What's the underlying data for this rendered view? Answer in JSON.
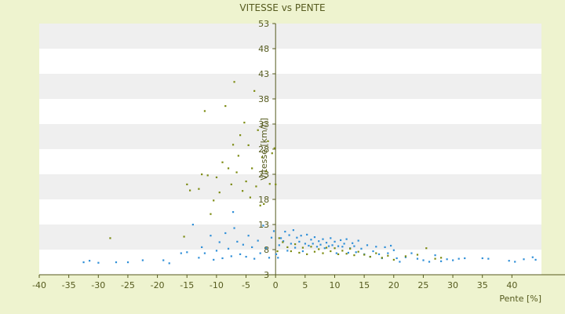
{
  "chart_data": {
    "type": "scatter",
    "title": "VITESSE vs PENTE",
    "xlabel": "Pente [%]",
    "ylabel": "Vitesse [km/h]",
    "xlim": [
      -40,
      45
    ],
    "ylim": [
      3,
      53
    ],
    "x_ticks": [
      -40,
      -35,
      -30,
      -25,
      -20,
      -15,
      -10,
      -5,
      0,
      5,
      10,
      15,
      20,
      25,
      30,
      35,
      40
    ],
    "y_ticks": [
      3,
      8,
      13,
      18,
      23,
      28,
      33,
      38,
      43,
      48,
      53
    ],
    "grid": "alternating horizontal bands",
    "legend": "none",
    "colors": {
      "plot_bg": "#ffffff",
      "band": "#efefef",
      "page_bg": "#eef3cf",
      "axis": "#555a1e"
    },
    "series": [
      {
        "color": "#2f8fd8",
        "points": [
          [
            -32.5,
            5.5
          ],
          [
            -31.5,
            5.8
          ],
          [
            -30,
            5.4
          ],
          [
            -27,
            5.5
          ],
          [
            -25,
            5.5
          ],
          [
            -22.5,
            5.9
          ],
          [
            -19,
            5.9
          ],
          [
            -18,
            5.3
          ],
          [
            -16,
            7.3
          ],
          [
            -15,
            7.5
          ],
          [
            -14,
            13
          ],
          [
            -13,
            6.4
          ],
          [
            -12.5,
            8.5
          ],
          [
            -12,
            7.3
          ],
          [
            -11,
            10.8
          ],
          [
            -10.5,
            6
          ],
          [
            -10,
            7.8
          ],
          [
            -9.5,
            9.5
          ],
          [
            -9,
            6.3
          ],
          [
            -8.5,
            11.3
          ],
          [
            -8,
            8.2
          ],
          [
            -7.5,
            6.7
          ],
          [
            -7.2,
            15.5
          ],
          [
            -7,
            12.3
          ],
          [
            -6.5,
            9.6
          ],
          [
            -6,
            7.1
          ],
          [
            -5.5,
            9
          ],
          [
            -5,
            6.6
          ],
          [
            -4.6,
            10.8
          ],
          [
            -4,
            8.5
          ],
          [
            -3.6,
            6.2
          ],
          [
            -3,
            9.8
          ],
          [
            -2.6,
            7.3
          ],
          [
            -2.1,
            12.8
          ],
          [
            -1.6,
            8.3
          ],
          [
            -1.1,
            6.4
          ],
          [
            -0.7,
            10.4
          ],
          [
            -0.3,
            11.7
          ],
          [
            0.1,
            7.1
          ],
          [
            0.4,
            6.4
          ],
          [
            0.6,
            8.9
          ],
          [
            0.9,
            10.3
          ],
          [
            1.3,
            9.7
          ],
          [
            1.6,
            11.6
          ],
          [
            2,
            7.8
          ],
          [
            2.3,
            10.9
          ],
          [
            2.6,
            9.2
          ],
          [
            3,
            11.9
          ],
          [
            3.3,
            8.4
          ],
          [
            3.6,
            10.4
          ],
          [
            4,
            9.6
          ],
          [
            4.3,
            10.8
          ],
          [
            4.6,
            7.7
          ],
          [
            5,
            9.2
          ],
          [
            5.3,
            11
          ],
          [
            5.6,
            8.8
          ],
          [
            6,
            10
          ],
          [
            6.3,
            9.2
          ],
          [
            6.6,
            10.5
          ],
          [
            7,
            8.6
          ],
          [
            7.3,
            9.7
          ],
          [
            7.6,
            9
          ],
          [
            8,
            10.1
          ],
          [
            8.3,
            8.3
          ],
          [
            8.6,
            9.4
          ],
          [
            9,
            8.7
          ],
          [
            9.3,
            10.3
          ],
          [
            9.6,
            8.9
          ],
          [
            10,
            9.6
          ],
          [
            10.3,
            7.3
          ],
          [
            10.6,
            8.7
          ],
          [
            11,
            9.9
          ],
          [
            11.3,
            8.6
          ],
          [
            11.6,
            9.2
          ],
          [
            12,
            10.1
          ],
          [
            12.3,
            7.4
          ],
          [
            12.6,
            8.3
          ],
          [
            13,
            9.3
          ],
          [
            13.3,
            8.7
          ],
          [
            13.6,
            7.5
          ],
          [
            14,
            9.8
          ],
          [
            14.5,
            8.2
          ],
          [
            15,
            7.1
          ],
          [
            15.5,
            8.9
          ],
          [
            16,
            6.6
          ],
          [
            16.5,
            7.7
          ],
          [
            17,
            8.6
          ],
          [
            17.5,
            7.1
          ],
          [
            18,
            6.3
          ],
          [
            18.5,
            8.5
          ],
          [
            19,
            7.3
          ],
          [
            19.5,
            8.8
          ],
          [
            20,
            7.9
          ],
          [
            20.5,
            6.3
          ],
          [
            21,
            5.6
          ],
          [
            22,
            6.5
          ],
          [
            23,
            7.3
          ],
          [
            24,
            6.2
          ],
          [
            25,
            5.9
          ],
          [
            26,
            5.6
          ],
          [
            27,
            6.9
          ],
          [
            28,
            5.7
          ],
          [
            29,
            6.1
          ],
          [
            30,
            5.9
          ],
          [
            31,
            6.2
          ],
          [
            32,
            6.3
          ],
          [
            35,
            6.3
          ],
          [
            36,
            6.2
          ],
          [
            39.5,
            5.8
          ],
          [
            40.5,
            5.6
          ],
          [
            42,
            6.1
          ],
          [
            43.5,
            6.5
          ],
          [
            44,
            6
          ]
        ]
      },
      {
        "color": "#7b8a10",
        "points": [
          [
            -28,
            10.3
          ],
          [
            -15.5,
            10.6
          ],
          [
            -15,
            21
          ],
          [
            -14.5,
            19.8
          ],
          [
            -13,
            20.1
          ],
          [
            -12.5,
            23
          ],
          [
            -12,
            35.6
          ],
          [
            -11.5,
            22.8
          ],
          [
            -11,
            15.1
          ],
          [
            -10.5,
            17.8
          ],
          [
            -10,
            22.4
          ],
          [
            -9.5,
            19.4
          ],
          [
            -9,
            25.4
          ],
          [
            -8.5,
            36.6
          ],
          [
            -8,
            24.2
          ],
          [
            -7.5,
            21
          ],
          [
            -7.2,
            28.9
          ],
          [
            -7,
            41.4
          ],
          [
            -6.6,
            23.4
          ],
          [
            -6.3,
            26.7
          ],
          [
            -6,
            30.8
          ],
          [
            -5.6,
            19.7
          ],
          [
            -5.3,
            33.3
          ],
          [
            -5,
            21.6
          ],
          [
            -4.6,
            28.8
          ],
          [
            -4.3,
            18.4
          ],
          [
            -4,
            24.2
          ],
          [
            -3.6,
            39.6
          ],
          [
            -3.3,
            20.6
          ],
          [
            -3,
            31.8
          ],
          [
            -2.6,
            16.8
          ],
          [
            -2.3,
            26.4
          ],
          [
            -2,
            17.1
          ],
          [
            -1.6,
            23.6
          ],
          [
            -1.3,
            29.6
          ],
          [
            -1,
            21.1
          ],
          [
            -0.6,
            27.2
          ],
          [
            -0.2,
            28.2
          ],
          [
            0,
            21
          ],
          [
            0.3,
            7.7
          ],
          [
            0.6,
            10.3
          ],
          [
            1.2,
            9.5
          ],
          [
            2,
            8.5
          ],
          [
            2.6,
            7.7
          ],
          [
            3.3,
            9.1
          ],
          [
            4,
            7.4
          ],
          [
            4.6,
            8.4
          ],
          [
            5.3,
            7.1
          ],
          [
            6,
            8.6
          ],
          [
            6.6,
            7.6
          ],
          [
            7.3,
            8.1
          ],
          [
            8,
            7.3
          ],
          [
            8.6,
            8.4
          ],
          [
            9.3,
            7.7
          ],
          [
            10,
            8.3
          ],
          [
            10.6,
            7.1
          ],
          [
            11.3,
            7.8
          ],
          [
            12,
            7.2
          ],
          [
            12.6,
            8.2
          ],
          [
            13.3,
            6.9
          ],
          [
            14,
            7.6
          ],
          [
            15,
            7
          ],
          [
            16,
            6.6
          ],
          [
            17,
            7.3
          ],
          [
            18,
            6.4
          ],
          [
            19,
            6.8
          ],
          [
            20,
            6
          ],
          [
            22,
            6.7
          ],
          [
            24,
            7
          ],
          [
            25.5,
            8.3
          ],
          [
            27,
            6.2
          ],
          [
            28,
            6.4
          ]
        ]
      }
    ]
  }
}
